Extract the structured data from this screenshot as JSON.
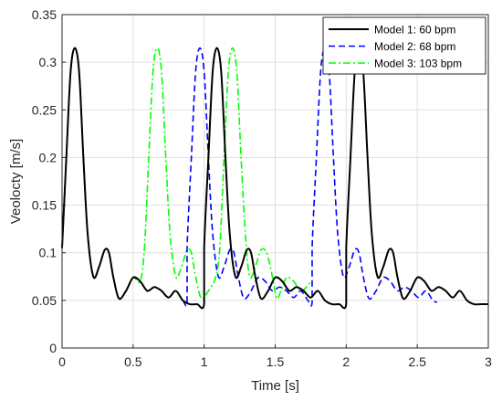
{
  "chart_data": {
    "type": "line",
    "title": "",
    "xlabel": "Time [s]",
    "ylabel": "Veolocty [m/s]",
    "xlim": [
      0,
      3
    ],
    "ylim": [
      0,
      0.35
    ],
    "xticks": [
      0,
      0.5,
      1,
      1.5,
      2,
      2.5,
      3
    ],
    "xtick_labels": [
      "0",
      "0.5",
      "1",
      "1.5",
      "2",
      "2.5",
      "3"
    ],
    "yticks": [
      0,
      0.05,
      0.1,
      0.15,
      0.2,
      0.25,
      0.3,
      0.35
    ],
    "ytick_labels": [
      "0",
      "0.05",
      "0.1",
      "0.15",
      "0.2",
      "0.25",
      "0.3",
      "0.35"
    ],
    "grid": true,
    "legend_position": "top-right",
    "series": [
      {
        "name": "Model 1: 60 bpm",
        "color": "#000000",
        "dash": "solid",
        "x": [
          0,
          0.03,
          0.06,
          0.09,
          0.12,
          0.15,
          0.18,
          0.22,
          0.26,
          0.3,
          0.33,
          0.36,
          0.4,
          0.45,
          0.5,
          0.55,
          0.6,
          0.65,
          0.7,
          0.75,
          0.8,
          0.85,
          0.9,
          0.95,
          1.0,
          1.0,
          1.03,
          1.06,
          1.09,
          1.12,
          1.15,
          1.18,
          1.22,
          1.26,
          1.3,
          1.33,
          1.36,
          1.4,
          1.45,
          1.5,
          1.55,
          1.6,
          1.65,
          1.7,
          1.75,
          1.8,
          1.85,
          1.9,
          1.95,
          2.0,
          2.0,
          2.03,
          2.06,
          2.09,
          2.12,
          2.15,
          2.18,
          2.22,
          2.26,
          2.3,
          2.33,
          2.36,
          2.4,
          2.45,
          2.5,
          2.55,
          2.6,
          2.65,
          2.7,
          2.75,
          2.8,
          2.85,
          2.9,
          2.95,
          3.0
        ],
        "y": [
          0.105,
          0.2,
          0.29,
          0.315,
          0.29,
          0.2,
          0.12,
          0.075,
          0.085,
          0.103,
          0.1,
          0.075,
          0.052,
          0.06,
          0.074,
          0.07,
          0.06,
          0.064,
          0.06,
          0.053,
          0.06,
          0.05,
          0.046,
          0.046,
          0.046,
          0.105,
          0.2,
          0.29,
          0.315,
          0.29,
          0.2,
          0.12,
          0.075,
          0.085,
          0.103,
          0.1,
          0.075,
          0.052,
          0.06,
          0.074,
          0.07,
          0.06,
          0.064,
          0.06,
          0.053,
          0.06,
          0.05,
          0.046,
          0.046,
          0.046,
          0.105,
          0.2,
          0.29,
          0.315,
          0.29,
          0.2,
          0.12,
          0.075,
          0.085,
          0.103,
          0.1,
          0.075,
          0.052,
          0.06,
          0.074,
          0.07,
          0.06,
          0.064,
          0.06,
          0.053,
          0.06,
          0.05,
          0.046,
          0.046,
          0.046
        ]
      },
      {
        "name": "Model 2: 68 bpm",
        "color": "#0000ff",
        "dash": "7,4",
        "x": [
          0,
          0.03,
          0.06,
          0.09,
          0.12,
          0.15,
          0.18,
          0.22,
          0.26,
          0.3,
          0.33,
          0.36,
          0.4,
          0.45,
          0.5,
          0.55,
          0.6,
          0.65,
          0.7,
          0.75,
          0.8,
          0.85,
          0.88,
          0.88,
          0.91,
          0.94,
          0.97,
          1.0,
          1.03,
          1.06,
          1.1,
          1.14,
          1.18,
          1.21,
          1.24,
          1.28,
          1.33,
          1.38,
          1.43,
          1.48,
          1.53,
          1.58,
          1.63,
          1.68,
          1.73,
          1.76,
          1.76,
          1.79,
          1.82,
          1.85,
          1.88,
          1.91,
          1.94,
          1.98,
          2.02,
          2.06,
          2.09,
          2.12,
          2.16,
          2.21,
          2.26,
          2.31,
          2.36,
          2.41,
          2.46,
          2.51,
          2.56,
          2.61,
          2.64
        ],
        "y": [
          0.105,
          0.2,
          0.29,
          0.315,
          0.29,
          0.2,
          0.12,
          0.075,
          0.085,
          0.103,
          0.1,
          0.075,
          0.052,
          0.06,
          0.074,
          0.07,
          0.06,
          0.064,
          0.06,
          0.053,
          0.06,
          0.05,
          0.048,
          0.105,
          0.2,
          0.29,
          0.315,
          0.29,
          0.2,
          0.12,
          0.075,
          0.085,
          0.103,
          0.1,
          0.075,
          0.052,
          0.06,
          0.074,
          0.07,
          0.06,
          0.064,
          0.06,
          0.053,
          0.06,
          0.05,
          0.048,
          0.105,
          0.2,
          0.29,
          0.315,
          0.29,
          0.2,
          0.12,
          0.075,
          0.085,
          0.103,
          0.1,
          0.075,
          0.052,
          0.06,
          0.074,
          0.07,
          0.06,
          0.064,
          0.06,
          0.053,
          0.06,
          0.05,
          0.048
        ]
      },
      {
        "name": "Model 3: 103 bpm",
        "color": "#00ff00",
        "dash": "8,3,2,3",
        "x": [
          0,
          0.03,
          0.06,
          0.09,
          0.12,
          0.15,
          0.18,
          0.22,
          0.26,
          0.3,
          0.33,
          0.36,
          0.4,
          0.45,
          0.5,
          0.55,
          0.58,
          0.61,
          0.64,
          0.67,
          0.7,
          0.73,
          0.76,
          0.8,
          0.84,
          0.88,
          0.91,
          0.94,
          0.98,
          1.03,
          1.08,
          1.11,
          1.14,
          1.17,
          1.2,
          1.23,
          1.26,
          1.29,
          1.32,
          1.36,
          1.4,
          1.44,
          1.48,
          1.51,
          1.54,
          1.58,
          1.63,
          1.68,
          1.72,
          1.75
        ],
        "y": [
          0.105,
          0.2,
          0.29,
          0.315,
          0.29,
          0.2,
          0.12,
          0.075,
          0.085,
          0.103,
          0.1,
          0.075,
          0.052,
          0.06,
          0.074,
          0.07,
          0.105,
          0.2,
          0.29,
          0.315,
          0.29,
          0.2,
          0.12,
          0.075,
          0.085,
          0.103,
          0.1,
          0.075,
          0.052,
          0.06,
          0.074,
          0.105,
          0.2,
          0.29,
          0.315,
          0.29,
          0.2,
          0.12,
          0.075,
          0.085,
          0.103,
          0.1,
          0.075,
          0.052,
          0.06,
          0.074,
          0.07,
          0.06,
          0.064,
          0.07
        ]
      }
    ]
  }
}
